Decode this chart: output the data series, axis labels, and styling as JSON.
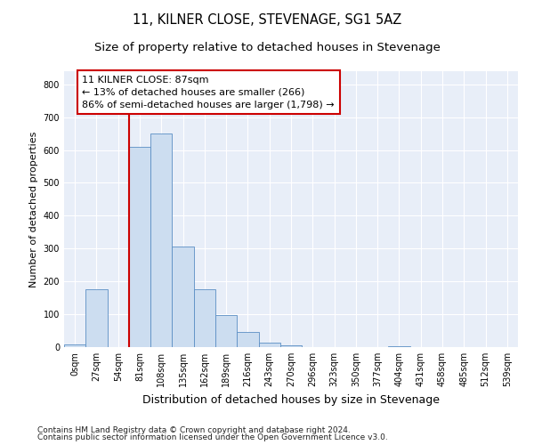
{
  "title": "11, KILNER CLOSE, STEVENAGE, SG1 5AZ",
  "subtitle": "Size of property relative to detached houses in Stevenage",
  "xlabel": "Distribution of detached houses by size in Stevenage",
  "ylabel": "Number of detached properties",
  "bin_labels": [
    "0sqm",
    "27sqm",
    "54sqm",
    "81sqm",
    "108sqm",
    "135sqm",
    "162sqm",
    "189sqm",
    "216sqm",
    "243sqm",
    "270sqm",
    "296sqm",
    "323sqm",
    "350sqm",
    "377sqm",
    "404sqm",
    "431sqm",
    "458sqm",
    "485sqm",
    "512sqm",
    "539sqm"
  ],
  "bar_heights": [
    8,
    175,
    0,
    610,
    650,
    305,
    175,
    97,
    46,
    13,
    5,
    0,
    0,
    0,
    0,
    4,
    0,
    0,
    0,
    0,
    0
  ],
  "bar_color": "#ccddf0",
  "bar_edge_color": "#5b8ec4",
  "vline_x_index": 3,
  "annotation_line1": "11 KILNER CLOSE: 87sqm",
  "annotation_line2": "← 13% of detached houses are smaller (266)",
  "annotation_line3": "86% of semi-detached houses are larger (1,798) →",
  "annotation_box_color": "white",
  "annotation_box_edge_color": "#cc0000",
  "vline_color": "#cc0000",
  "ylim": [
    0,
    840
  ],
  "yticks": [
    0,
    100,
    200,
    300,
    400,
    500,
    600,
    700,
    800
  ],
  "background_color": "#e8eef8",
  "grid_color": "white",
  "footer_line1": "Contains HM Land Registry data © Crown copyright and database right 2024.",
  "footer_line2": "Contains public sector information licensed under the Open Government Licence v3.0.",
  "title_fontsize": 10.5,
  "subtitle_fontsize": 9.5,
  "xlabel_fontsize": 9,
  "ylabel_fontsize": 8,
  "tick_fontsize": 7,
  "annotation_fontsize": 8,
  "footer_fontsize": 6.5
}
